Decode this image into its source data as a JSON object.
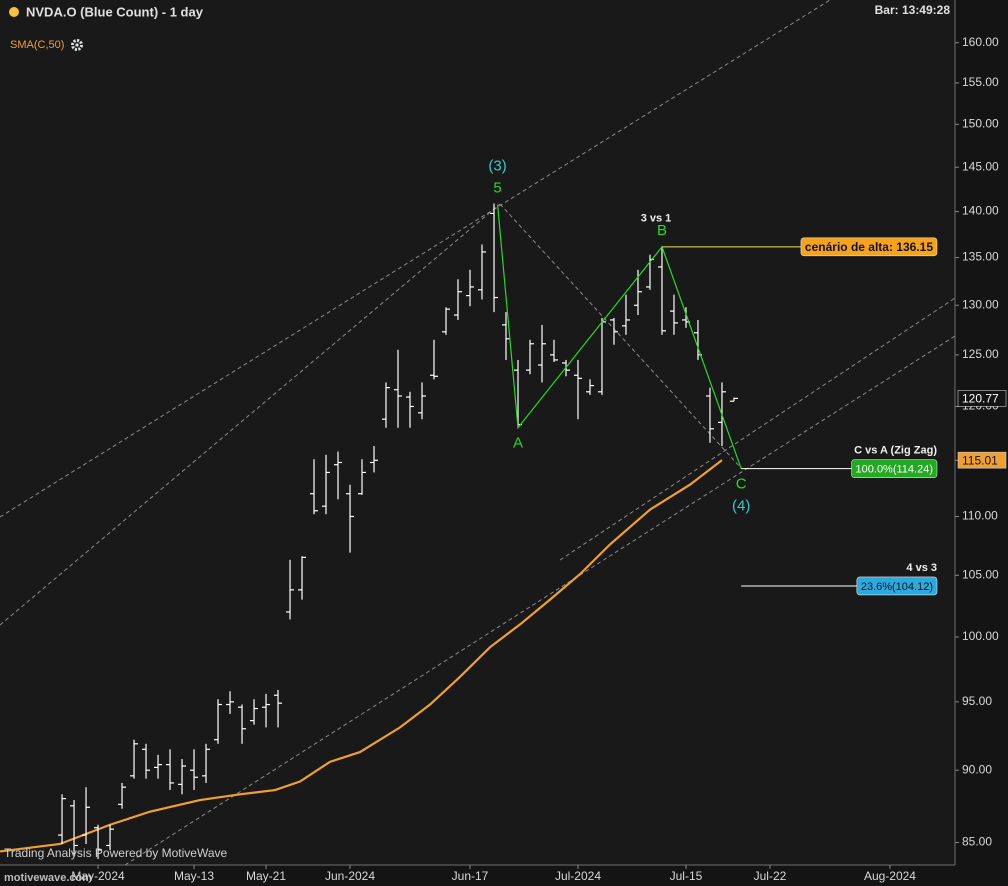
{
  "chart_data": {
    "type": "ohlc",
    "title": "NVDA.O (Blue Count) - 1 day",
    "bar_time": "Bar: 13:49:28",
    "watermark": "Trading Analysis Powered by MotiveWave",
    "site": "motivewave.com",
    "log_scale": true,
    "grid": false,
    "ylim": [
      83.5,
      165.5
    ],
    "yticks": [
      {
        "value": 160,
        "label": "160.00"
      },
      {
        "value": 155,
        "label": "155.00"
      },
      {
        "value": 150,
        "label": "150.00"
      },
      {
        "value": 145,
        "label": "145.00"
      },
      {
        "value": 140,
        "label": "140.00"
      },
      {
        "value": 135,
        "label": "135.00"
      },
      {
        "value": 130,
        "label": "130.00"
      },
      {
        "value": 125,
        "label": "125.00"
      },
      {
        "value": 120,
        "label": "120.00"
      },
      {
        "value": 115,
        "label": "115.00"
      },
      {
        "value": 110,
        "label": "110.00"
      },
      {
        "value": 105,
        "label": "105.00"
      },
      {
        "value": 100,
        "label": "100.00"
      },
      {
        "value": 95,
        "label": "95.00"
      },
      {
        "value": 90,
        "label": "90.00"
      },
      {
        "value": 85,
        "label": "85.00"
      }
    ],
    "xlim": [
      -5.17,
      74.42
    ],
    "xticks": [
      {
        "value": 3,
        "label": "May-2024"
      },
      {
        "value": 11,
        "label": "May-13"
      },
      {
        "value": 17,
        "label": "May-21"
      },
      {
        "value": 24,
        "label": "Jun-2024"
      },
      {
        "value": 34,
        "label": "Jun-17"
      },
      {
        "value": 43,
        "label": "Jul-2024"
      },
      {
        "value": 52,
        "label": "Jul-15"
      },
      {
        "value": 59,
        "label": "Jul-22"
      },
      {
        "value": 69,
        "label": "Aug-2024"
      }
    ],
    "bars": {
      "color": "#ffffff",
      "open": [
        85.5,
        87.5,
        85.5,
        86.0,
        84.8,
        87.6,
        89.6,
        91.5,
        90.2,
        90.4,
        89.0,
        90.0,
        89.6,
        92.2,
        94.8,
        94.6,
        93.6,
        94.6,
        95.5,
        102.0,
        103.8,
        112.0,
        110.9,
        114.6,
        112.0,
        112.0,
        114.8,
        118.8,
        121.6,
        120.9,
        119.4,
        123.0,
        127.3,
        129.0,
        131.0,
        131.6,
        139.8,
        128.0,
        123.5,
        123.5,
        124.0,
        125.0,
        124.2,
        123.0,
        121.4,
        121.4,
        128.5,
        127.9,
        130.0,
        131.9,
        134.0,
        129.4,
        128.5,
        127.2,
        121.0,
        118.5,
        120.5
      ],
      "high": [
        88.3,
        87.9,
        88.8,
        86.2,
        86.2,
        89.1,
        92.2,
        91.9,
        91.1,
        91.5,
        90.8,
        91.5,
        91.9,
        95.2,
        95.8,
        94.8,
        95.2,
        95.6,
        95.9,
        106.3,
        106.6,
        115.1,
        115.5,
        115.8,
        112.8,
        115.1,
        116.3,
        122.3,
        125.5,
        121.4,
        122.3,
        126.5,
        129.8,
        132.7,
        133.7,
        136.4,
        140.9,
        129.3,
        124.5,
        126.5,
        128.0,
        126.5,
        124.5,
        124.5,
        122.6,
        128.7,
        128.7,
        131.1,
        133.7,
        135.3,
        136.2,
        131.1,
        129.8,
        128.5,
        121.8,
        122.3,
        120.85
      ],
      "low": [
        84.9,
        84.2,
        84.9,
        83.9,
        84.5,
        87.3,
        89.4,
        89.4,
        89.4,
        88.6,
        88.3,
        88.6,
        89.1,
        91.9,
        94.1,
        91.9,
        93.3,
        93.1,
        93.1,
        101.4,
        103.0,
        110.2,
        110.2,
        111.5,
        106.9,
        111.9,
        113.9,
        118.0,
        118.0,
        118.0,
        118.8,
        122.6,
        127.0,
        128.5,
        129.9,
        130.6,
        129.3,
        124.5,
        118.0,
        123.1,
        122.3,
        124.3,
        122.9,
        118.8,
        121.1,
        121.1,
        126.0,
        127.0,
        129.0,
        131.6,
        127.0,
        127.0,
        127.7,
        124.5,
        116.6,
        116.3,
        120.5
      ],
      "close": [
        88.0,
        84.8,
        87.4,
        84.5,
        85.9,
        88.8,
        91.9,
        90.0,
        90.4,
        89.1,
        90.3,
        89.5,
        91.5,
        94.8,
        95.0,
        93.0,
        94.5,
        94.8,
        94.9,
        103.8,
        106.5,
        110.5,
        113.9,
        114.8,
        110.0,
        113.9,
        115.0,
        121.8,
        121.0,
        120.0,
        121.0,
        122.9,
        129.6,
        131.4,
        131.9,
        135.6,
        130.8,
        126.6,
        118.3,
        126.1,
        126.1,
        124.5,
        123.5,
        122.7,
        122.0,
        128.3,
        127.3,
        128.5,
        131.4,
        134.8,
        127.4,
        128.2,
        128.3,
        125.0,
        117.9,
        121.4,
        120.77
      ]
    },
    "last_price": 120.77,
    "sma": {
      "name": "SMA(C,50)",
      "color": "#f0a030",
      "x": [
        -5.17,
        -0.17,
        4,
        7.33,
        11.5,
        14.83,
        17.75,
        19.83,
        22.33,
        24.83,
        28.17,
        30.67,
        33.17,
        35.67,
        38.17,
        40.67,
        43.17,
        45.67,
        49,
        52.33,
        55
      ],
      "values": [
        84.4,
        84.9,
        86.2,
        87.1,
        87.9,
        88.3,
        88.6,
        89.2,
        90.6,
        91.3,
        93.1,
        94.8,
        96.9,
        99.2,
        101.0,
        103.0,
        105.1,
        107.6,
        110.6,
        112.8,
        115.01
      ]
    },
    "waves": {
      "color": "#22dd22",
      "x": [
        36.3,
        38,
        50,
        56.6
      ],
      "values": [
        140.76,
        118.0,
        136.15,
        114.24
      ],
      "labels": [
        "5",
        "A",
        "B",
        "C"
      ],
      "degree_labels": [
        "(3)",
        null,
        null,
        "(4)"
      ],
      "degree_color": "#33cccc"
    },
    "levels": [
      {
        "title": "3 vs 1",
        "label": "cenário de alta: 136.15",
        "value": 136.15,
        "x": 50,
        "color": "#f5a31a",
        "line_color": "#e8e060"
      },
      {
        "title": "C vs A (Zig Zag)",
        "label": "100.0%(114.24)",
        "value": 114.24,
        "x": 56.6,
        "color": "#22aa22",
        "line_color": "#ffffff"
      },
      {
        "title": "4 vs 3",
        "label": "23.6%(104.12)",
        "value": 104.12,
        "x": 56.6,
        "color": "#29abe2",
        "line_color": "#ffffff"
      }
    ]
  }
}
